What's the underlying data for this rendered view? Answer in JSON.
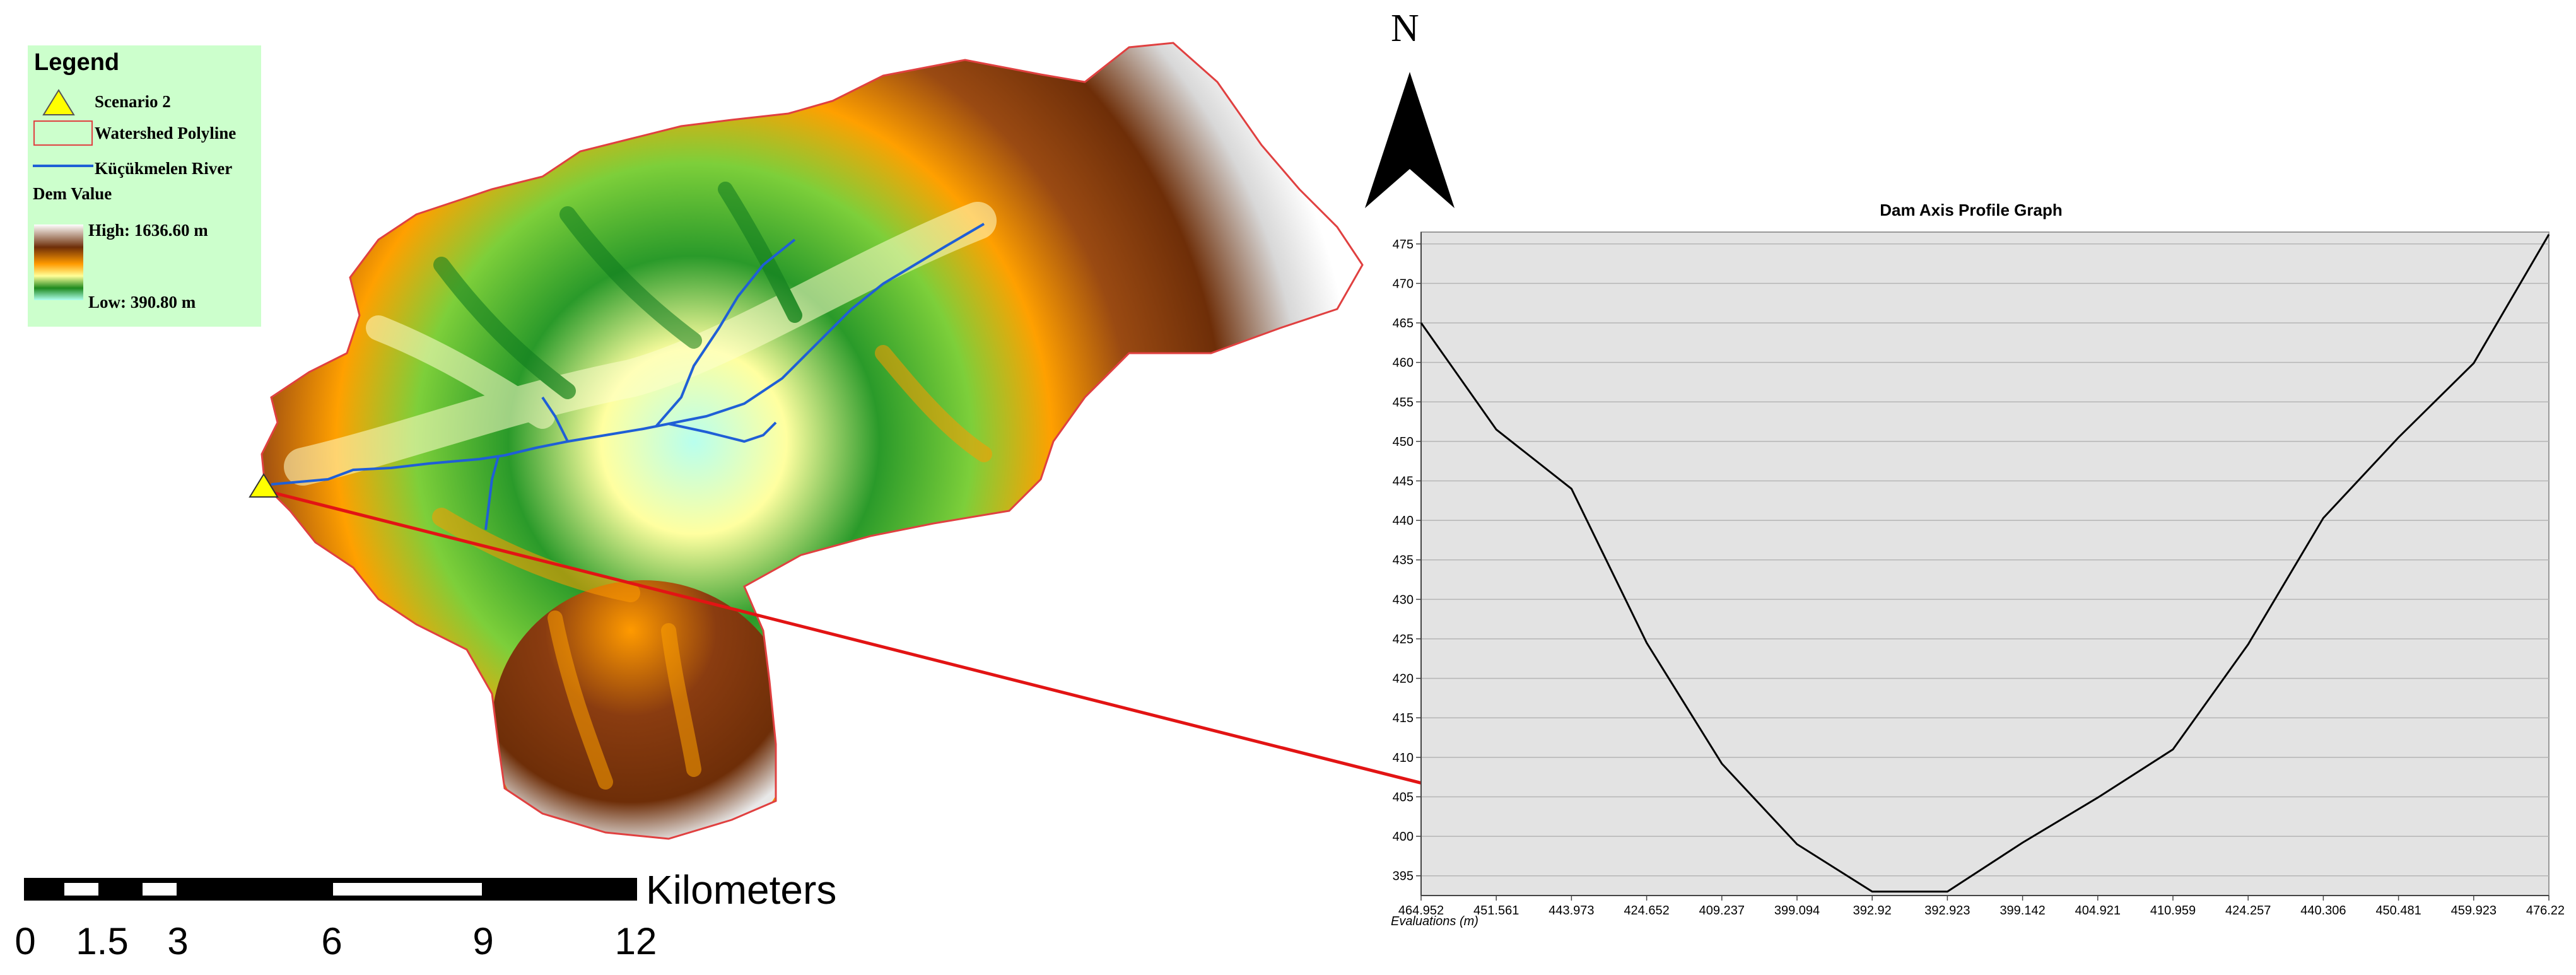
{
  "legend": {
    "title": "Legend",
    "items": [
      {
        "label": "Scenario 2",
        "icon": "yellow-triangle-icon",
        "color": "#ffff00"
      },
      {
        "label": "Watershed Polyline",
        "icon": "red-outline-box-icon",
        "color": "#e04040"
      },
      {
        "label": "Küçükmelen River",
        "icon": "blue-line-icon",
        "color": "#1f5fd6"
      }
    ],
    "dem": {
      "label": "Dem Value",
      "high": "High: 1636.60 m",
      "low": "Low: 390.80 m",
      "ramp": [
        "#ffffff",
        "#7a3a10",
        "#ff9a00",
        "#ffff99",
        "#2a9a2a",
        "#b0ffee"
      ]
    },
    "background": "#ccffcc"
  },
  "north_arrow": {
    "letter": "N"
  },
  "scale_bar": {
    "unit": "Kilometers",
    "ticks": [
      "0",
      "1.5",
      "3",
      "6",
      "9",
      "12"
    ],
    "tick_values": [
      0,
      1.5,
      3,
      6,
      9,
      12
    ]
  },
  "callout": {
    "color": "#e21414"
  },
  "chart_data": {
    "type": "line",
    "title": "Dam Axis Profile Graph",
    "xlabel": "Evaluations (m)",
    "ylabel": "",
    "categories": [
      "464.952",
      "451.561",
      "443.973",
      "424.652",
      "409.237",
      "399.094",
      "392.92",
      "392.923",
      "399.142",
      "404.921",
      "410.959",
      "424.257",
      "440.306",
      "450.481",
      "459.923",
      "476.223"
    ],
    "values": [
      465,
      451.5,
      444,
      424.5,
      409.2,
      399,
      393,
      393,
      399.2,
      404.9,
      411,
      424.3,
      440.3,
      450.5,
      459.9,
      476.2
    ],
    "yticks": [
      395,
      400,
      405,
      410,
      415,
      420,
      425,
      430,
      435,
      440,
      445,
      450,
      455,
      460,
      465,
      470,
      475
    ],
    "ylim": [
      392.5,
      476.5
    ],
    "grid": true,
    "plot_background": "#e3e3e3",
    "line_color": "#000000"
  }
}
